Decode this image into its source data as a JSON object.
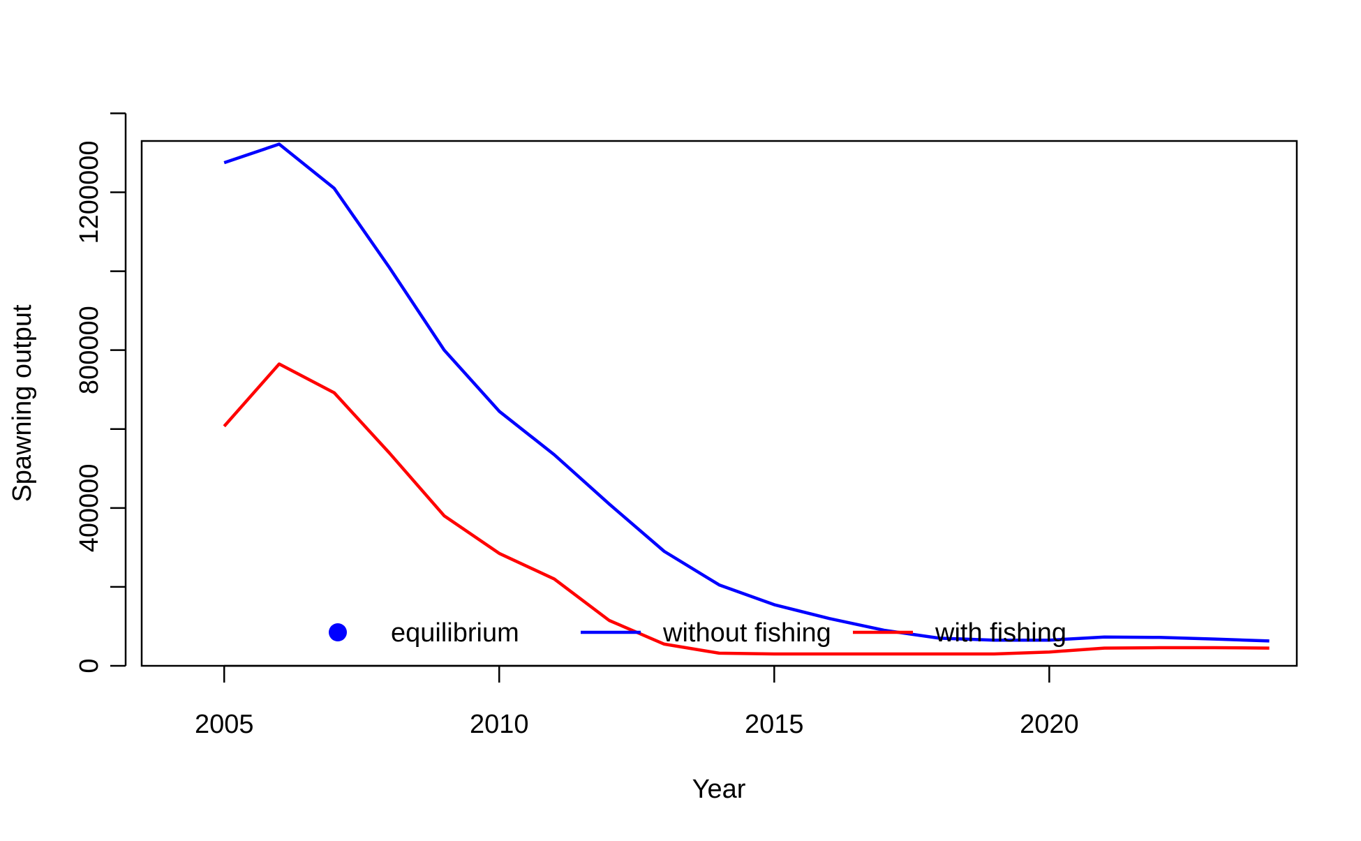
{
  "chart_data": {
    "type": "line",
    "title": "",
    "xlabel": "Year",
    "ylabel": "Spawning output",
    "xlim": [
      2003.5,
      2024.5
    ],
    "ylim": [
      0,
      1330000
    ],
    "x_ticks": [
      2005,
      2010,
      2015,
      2020
    ],
    "x_tick_labels": [
      "2005",
      "2010",
      "2015",
      "2020"
    ],
    "y_ticks": [
      0,
      200000,
      400000,
      600000,
      800000,
      1000000,
      1200000,
      1400000
    ],
    "y_tick_labels": [
      "0",
      "",
      "400000",
      "",
      "800000",
      "",
      "1200000",
      ""
    ],
    "grid": false,
    "legend_position": "bottom",
    "x": [
      2005,
      2006,
      2007,
      2008,
      2009,
      2010,
      2011,
      2012,
      2013,
      2014,
      2015,
      2016,
      2017,
      2018,
      2019,
      2020,
      2021,
      2022,
      2023,
      2024
    ],
    "series": [
      {
        "name": "without fishing",
        "color": "#0000FF",
        "values": [
          1275000,
          1322000,
          1210000,
          1010000,
          800000,
          645000,
          535000,
          410000,
          290000,
          205000,
          155000,
          120000,
          90000,
          70000,
          65000,
          65000,
          73000,
          72000,
          68000,
          63000
        ]
      },
      {
        "name": "with fishing",
        "color": "#FF0000",
        "values": [
          607000,
          765000,
          692000,
          540000,
          380000,
          285000,
          220000,
          115000,
          55000,
          32000,
          30000,
          30000,
          30000,
          30000,
          30000,
          35000,
          45000,
          46000,
          46000,
          45000
        ]
      }
    ],
    "legend": [
      {
        "label": "equilibrium",
        "symbol": "point",
        "color": "#0000FF"
      },
      {
        "label": "without fishing",
        "symbol": "line",
        "color": "#0000FF"
      },
      {
        "label": "with fishing",
        "symbol": "line",
        "color": "#FF0000"
      }
    ]
  }
}
